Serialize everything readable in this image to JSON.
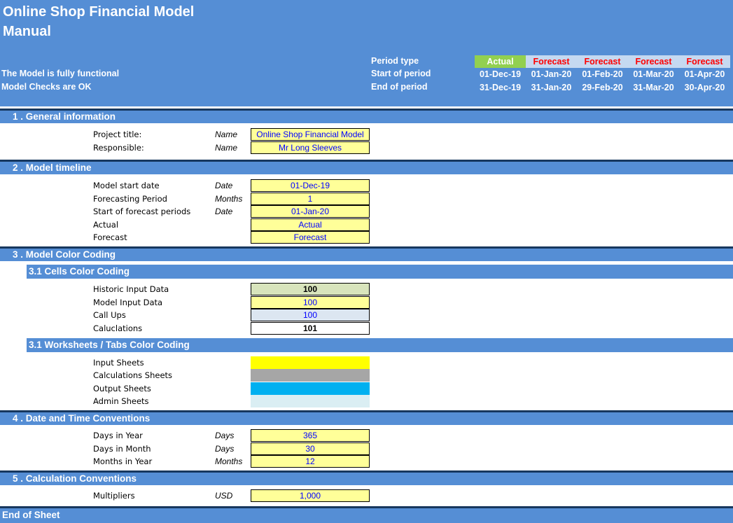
{
  "header": {
    "title_line1": "Online Shop Financial Model",
    "title_line2": "Manual",
    "status_functional": "The Model is fully functional",
    "status_checks": "Model Checks are OK",
    "period_type_label": "Period type",
    "start_label": "Start of period",
    "end_label": "End of period",
    "periods": [
      {
        "type": "Actual",
        "start": "01-Dec-19",
        "end": "31-Dec-19"
      },
      {
        "type": "Forecast",
        "start": "01-Jan-20",
        "end": "31-Jan-20"
      },
      {
        "type": "Forecast",
        "start": "01-Feb-20",
        "end": "29-Feb-20"
      },
      {
        "type": "Forecast",
        "start": "01-Mar-20",
        "end": "31-Mar-20"
      },
      {
        "type": "Forecast",
        "start": "01-Apr-20",
        "end": "30-Apr-20"
      }
    ]
  },
  "general": {
    "heading": "1 . General information",
    "rows": [
      {
        "label": "Project title:",
        "unit": "Name",
        "value": "Online Shop Financial Model"
      },
      {
        "label": "Responsible:",
        "unit": "Name",
        "value": "Mr Long Sleeves"
      }
    ]
  },
  "timeline": {
    "heading": "2 . Model timeline",
    "rows": [
      {
        "label": "Model start date",
        "unit": "Date",
        "value": "01-Dec-19"
      },
      {
        "label": "Forecasting Period",
        "unit": "Months",
        "value": "1"
      },
      {
        "label": "Start of forecast periods",
        "unit": "Date",
        "value": "01-Jan-20"
      },
      {
        "label": "Actual",
        "unit": "",
        "value": "Actual"
      },
      {
        "label": "Forecast",
        "unit": "",
        "value": "Forecast"
      }
    ]
  },
  "color_coding": {
    "heading": "3 . Model Color Coding",
    "cells_heading": "3.1 Cells Color Coding",
    "cells": [
      {
        "label": "Historic Input Data",
        "value": "100"
      },
      {
        "label": "Model Input Data",
        "value": "100"
      },
      {
        "label": "Call Ups",
        "value": "100"
      },
      {
        "label": "Caluclations",
        "value": "101"
      }
    ],
    "tabs_heading": "3.1 Worksheets / Tabs Color Coding",
    "tabs": [
      {
        "label": "Input Sheets",
        "color": "#ffff00"
      },
      {
        "label": "Calculations Sheets",
        "color": "#a6a6a6"
      },
      {
        "label": "Output Sheets",
        "color": "#00b0f0"
      },
      {
        "label": "Admin Sheets",
        "color": "#daeef3"
      }
    ]
  },
  "date_time": {
    "heading": "4 . Date and Time Conventions",
    "rows": [
      {
        "label": "Days in Year",
        "unit": "Days",
        "value": "365"
      },
      {
        "label": "Days in Month",
        "unit": "Days",
        "value": "30"
      },
      {
        "label": "Months in Year",
        "unit": "Months",
        "value": "12"
      }
    ]
  },
  "calc_conv": {
    "heading": "5 . Calculation Conventions",
    "rows": [
      {
        "label": "Multipliers",
        "unit": "USD",
        "value": "1,000"
      }
    ]
  },
  "end_label": "End of Sheet"
}
